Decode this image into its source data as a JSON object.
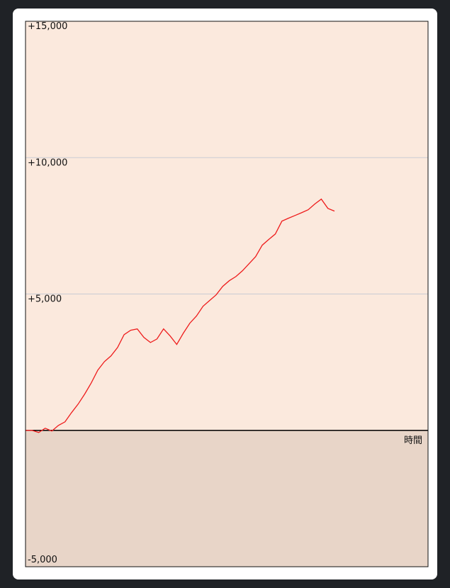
{
  "chart_data": {
    "type": "line",
    "x_label": "時間",
    "categories": [
      null,
      null,
      null,
      null,
      null,
      null,
      null,
      null,
      null,
      null,
      null,
      null,
      null,
      null,
      null,
      null,
      null,
      null,
      null,
      null,
      null,
      null,
      null,
      null,
      null,
      null,
      null,
      null,
      null,
      null,
      null,
      null,
      null,
      null,
      null,
      null,
      null,
      null,
      null,
      null,
      null,
      null,
      null,
      null,
      null,
      null,
      null,
      null
    ],
    "series": [
      {
        "color": "#ee1c1c",
        "values": [
          0,
          0,
          -80,
          80,
          -25,
          180,
          310,
          650,
          960,
          1330,
          1740,
          2210,
          2520,
          2730,
          3040,
          3510,
          3670,
          3720,
          3410,
          3220,
          3350,
          3720,
          3460,
          3150,
          3560,
          3930,
          4190,
          4550,
          4760,
          4970,
          5280,
          5490,
          5640,
          5850,
          6110,
          6370,
          6790,
          7000,
          7200,
          7670,
          7780,
          7880,
          7980,
          8090,
          8300,
          8480,
          8140,
          8040
        ]
      }
    ],
    "ylim": [
      -5000,
      15000
    ],
    "yticks": [
      {
        "value": 15000,
        "label": "+15,000"
      },
      {
        "value": 10000,
        "label": "+10,000"
      },
      {
        "value": 5000,
        "label": "+5,000"
      },
      {
        "value": -5000,
        "label": "-5,000"
      }
    ],
    "grid": true
  }
}
